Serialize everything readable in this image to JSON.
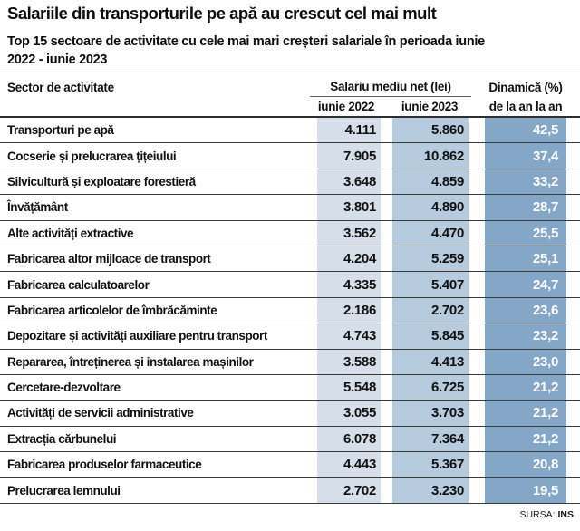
{
  "header": {
    "title": "Salariile din transporturile pe apă au crescut cel mai mult",
    "subtitle": "Top 15 sectoare de activitate cu cele mai mari creșteri salariale în perioada iunie 2022 - iunie 2023"
  },
  "table_headers": {
    "sector": "Sector de activitate",
    "salary_group": "Salariu mediu net (lei)",
    "june_2022": "iunie 2022",
    "june_2023": "iunie 2023",
    "dynamic_line1": "Dinamică (%)",
    "dynamic_line2": "de la an la an"
  },
  "source": {
    "label": "SURSA:",
    "value": "INS"
  },
  "colors": {
    "band_june_2022": "#d6dfe9",
    "band_june_2023": "#b6cbde",
    "band_dynamic": "#84a7c7",
    "text": "#111111",
    "row_line": "#3a3a3a"
  },
  "chart_data": {
    "type": "table",
    "title": "Salariile din transporturile pe apă au crescut cel mai mult",
    "subtitle": "Top 15 sectoare de activitate cu cele mai mari creșteri salariale în perioada iunie 2022 - iunie 2023",
    "columns": [
      "Sector de activitate",
      "Salariu mediu net (lei) iunie 2022",
      "Salariu mediu net (lei) iunie 2023",
      "Dinamică (%) de la an la an"
    ],
    "rows": [
      [
        "Transporturi pe apă",
        "4.111",
        "5.860",
        "42,5"
      ],
      [
        "Cocserie și prelucrarea țițeiului",
        "7.905",
        "10.862",
        "37,4"
      ],
      [
        "Silvicultură și exploatare forestieră",
        "3.648",
        "4.859",
        "33,2"
      ],
      [
        "Învățământ",
        "3.801",
        "4.890",
        "28,7"
      ],
      [
        "Alte activități extractive",
        "3.562",
        "4.470",
        "25,5"
      ],
      [
        "Fabricarea altor mijloace de transport",
        "4.204",
        "5.259",
        "25,1"
      ],
      [
        "Fabricarea calculatoarelor",
        "4.335",
        "5.407",
        "24,7"
      ],
      [
        "Fabricarea articolelor de îmbrăcăminte",
        "2.186",
        "2.702",
        "23,6"
      ],
      [
        "Depozitare și activități auxiliare pentru transport",
        "4.743",
        "5.845",
        "23,2"
      ],
      [
        "Repararea, întreținerea și instalarea mașinilor",
        "3.588",
        "4.413",
        "23,0"
      ],
      [
        "Cercetare-dezvoltare",
        "5.548",
        "6.725",
        "21,2"
      ],
      [
        "Activități de servicii administrative",
        "3.055",
        "3.703",
        "21,2"
      ],
      [
        "Extracția cărbunelui",
        "6.078",
        "7.364",
        "21,2"
      ],
      [
        "Fabricarea produselor farmaceutice",
        "4.443",
        "5.367",
        "20,8"
      ],
      [
        "Prelucrarea lemnului",
        "2.702",
        "3.230",
        "19,5"
      ]
    ],
    "source": "SURSA: INS"
  }
}
